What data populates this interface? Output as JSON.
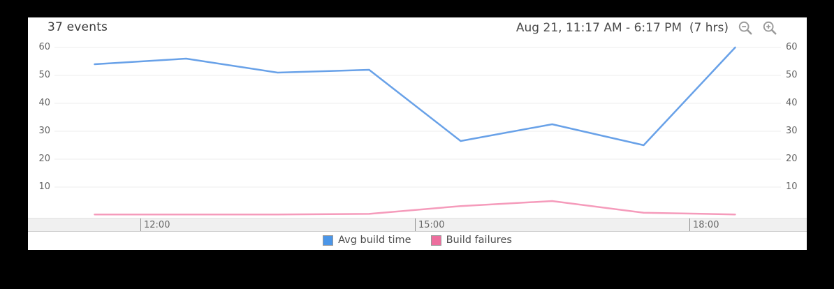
{
  "header": {
    "events_count": "37 events",
    "date_range": "Aug 21, 11:17 AM - 6:17 PM  (7 hrs)",
    "zoom_out_icon": "magnifier-minus-icon",
    "zoom_in_icon": "magnifier-plus-icon"
  },
  "colors": {
    "page_background": "#000000",
    "card_background": "#ffffff",
    "gridline": "#ededed",
    "axis_band": "#f0f0f0",
    "tick_text": "#666666",
    "avg_build_time_blue": "#4b96e8",
    "build_failures_pink": "#ed6e9e"
  },
  "chart_data": {
    "type": "line",
    "title": "37 events",
    "time_range_label": "Aug 21, 11:17 AM - 6:17 PM  (7 hrs)",
    "x_hours": [
      11.5,
      12.5,
      13.5,
      14.5,
      15.5,
      16.5,
      17.5,
      18.5
    ],
    "series": [
      {
        "name": "Avg build time",
        "color": "#4b96e8",
        "line_color": "#68a1e8",
        "values": [
          54,
          56,
          51,
          52,
          26.5,
          32.5,
          25,
          60
        ]
      },
      {
        "name": "Build failures",
        "color": "#ed6e9e",
        "line_color": "#f59bbb",
        "values": [
          0.2,
          0.2,
          0.2,
          0.4,
          3.2,
          5,
          0.8,
          0.2
        ]
      }
    ],
    "yticks": [
      10,
      20,
      30,
      40,
      50,
      60
    ],
    "xticks": [
      {
        "hour": 12,
        "label": "12:00"
      },
      {
        "hour": 15,
        "label": "15:00"
      },
      {
        "hour": 18,
        "label": "18:00"
      }
    ],
    "ylim": [
      0,
      62.5
    ],
    "xlim_hours": [
      11.06,
      19.0
    ],
    "grid": "horizontal",
    "legend_position": "bottom-center"
  }
}
